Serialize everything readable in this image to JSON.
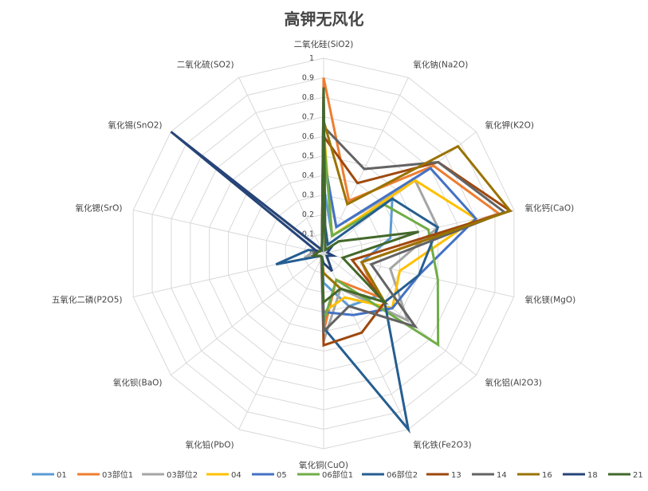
{
  "title": "高钾无风化",
  "chart_data": {
    "type": "radar",
    "title": "高钾无风化",
    "categories": [
      "二氧化硅(SiO2)",
      "氧化钠(Na2O)",
      "氧化钾(K2O)",
      "氧化钙(CaO)",
      "氧化镁(MgO)",
      "氧化铝(Al2O3)",
      "氧化铁(Fe2O3)",
      "氧化铜(CuO)",
      "氧化铅(PbO)",
      "氧化钡(BaO)",
      "五氧化二磷(P2O5)",
      "氧化锶(SrO)",
      "氧化锡(SnO2)",
      "二氧化硫(SO2)"
    ],
    "ticks": [
      "0",
      "0.1",
      "0.2",
      "0.3",
      "0.4",
      "0.5",
      "0.6",
      "0.7",
      "0.8",
      "0.9",
      "1"
    ],
    "rmax": 1,
    "series": [
      {
        "name": "01",
        "color": "#5B9BD5",
        "values": [
          0.35,
          0.1,
          0.45,
          0.35,
          0.2,
          0.35,
          0.3,
          0.15,
          0.02,
          0.02,
          0.05,
          0.05,
          0.02,
          0.02
        ]
      },
      {
        "name": "03部位1",
        "color": "#ED7D31",
        "values": [
          0.9,
          0.3,
          0.72,
          0.92,
          0.2,
          0.35,
          0.15,
          0.4,
          0.02,
          0.02,
          0.05,
          0.03,
          0.02,
          0.02
        ]
      },
      {
        "name": "03部位2",
        "color": "#A5A5A5",
        "values": [
          0.45,
          0.15,
          0.6,
          0.6,
          0.35,
          0.55,
          0.2,
          0.45,
          0.03,
          0.02,
          0.1,
          0.05,
          0.02,
          0.02
        ]
      },
      {
        "name": "04",
        "color": "#FFC000",
        "values": [
          0.65,
          0.1,
          0.6,
          0.8,
          0.4,
          0.45,
          0.25,
          0.3,
          0.02,
          0.02,
          0.05,
          0.03,
          0.02,
          0.02
        ]
      },
      {
        "name": "05",
        "color": "#4472C4",
        "values": [
          0.5,
          0.15,
          0.7,
          0.8,
          0.5,
          0.45,
          0.35,
          0.3,
          0.02,
          0.02,
          0.05,
          0.05,
          0.02,
          0.02
        ]
      },
      {
        "name": "06部位1",
        "color": "#70AD47",
        "values": [
          0.6,
          0.1,
          0.4,
          0.55,
          0.6,
          0.75,
          0.15,
          0.35,
          0.02,
          0.02,
          0.05,
          0.05,
          0.02,
          0.02
        ]
      },
      {
        "name": "06部位2",
        "color": "#255E91",
        "values": [
          0.2,
          0.05,
          0.45,
          0.6,
          0.5,
          0.4,
          1.0,
          0.38,
          0.02,
          0.02,
          0.25,
          0.08,
          0.02,
          0.02
        ]
      },
      {
        "name": "13",
        "color": "#9E480E",
        "values": [
          0.6,
          0.4,
          0.75,
          0.98,
          0.15,
          0.4,
          0.45,
          0.47,
          0.02,
          0.02,
          0.05,
          0.05,
          0.02,
          0.02
        ]
      },
      {
        "name": "14",
        "color": "#636363",
        "values": [
          0.65,
          0.48,
          0.75,
          0.95,
          0.25,
          0.6,
          0.3,
          0.4,
          0.02,
          0.02,
          0.05,
          0.05,
          0.02,
          0.02
        ]
      },
      {
        "name": "16",
        "color": "#997300",
        "values": [
          0.68,
          0.28,
          0.88,
          0.98,
          0.2,
          0.4,
          0.2,
          0.1,
          0.02,
          0.02,
          0.05,
          0.03,
          0.02,
          0.02
        ]
      },
      {
        "name": "18",
        "color": "#264478",
        "values": [
          0.85,
          0.02,
          0.05,
          0.02,
          0.05,
          0.02,
          0.1,
          0.05,
          0.02,
          0.02,
          0.05,
          0.03,
          1.0,
          0.02
        ]
      },
      {
        "name": "21",
        "color": "#43682B",
        "values": [
          0.85,
          0.02,
          0.1,
          0.5,
          0.1,
          0.4,
          0.2,
          0.25,
          0.02,
          0.02,
          0.05,
          0.03,
          0.02,
          0.02
        ]
      }
    ],
    "grid": true,
    "legend_position": "bottom"
  }
}
